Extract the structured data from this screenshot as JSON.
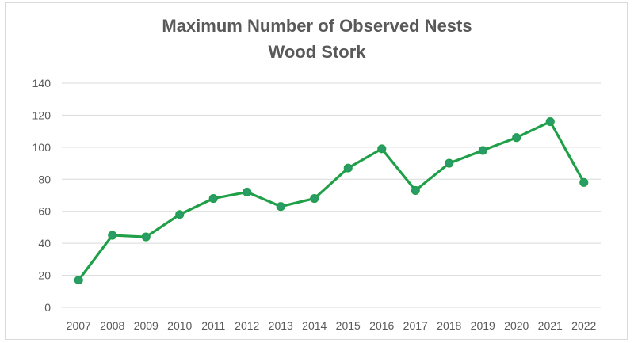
{
  "chart_data": {
    "type": "line",
    "title": [
      "Maximum Number of Observed Nests",
      "Wood Stork"
    ],
    "xlabel": "",
    "ylabel": "",
    "categories": [
      "2007",
      "2008",
      "2009",
      "2010",
      "2011",
      "2012",
      "2013",
      "2014",
      "2015",
      "2016",
      "2017",
      "2018",
      "2019",
      "2020",
      "2021",
      "2022"
    ],
    "series": [
      {
        "values": [
          17,
          45,
          44,
          58,
          68,
          72,
          63,
          68,
          87,
          99,
          73,
          90,
          98,
          106,
          116,
          78
        ]
      }
    ],
    "ylim": [
      0,
      140
    ],
    "yticks": [
      0,
      20,
      40,
      60,
      80,
      100,
      120,
      140
    ],
    "grid": "horizontal",
    "legend": "none",
    "colors": {
      "line": "#1fa048",
      "marker_fill": "#2a9c6b",
      "marker_edge": "#1fa048",
      "grid": "#d9d9d9",
      "text": "#595959"
    }
  }
}
